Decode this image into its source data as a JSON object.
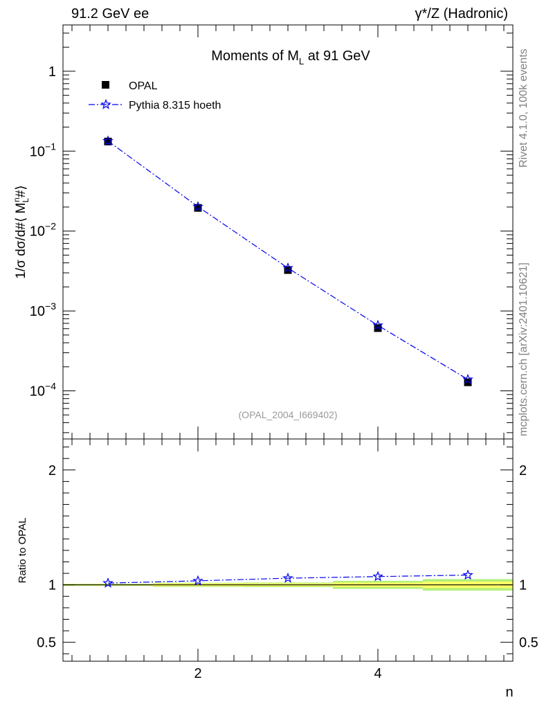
{
  "header": {
    "left": "91.2 GeV ee",
    "right": "γ*/Z (Hadronic)"
  },
  "side": {
    "rivet": "Rivet 4.1.0,  100k events",
    "mcplots": "mcplots.cern.ch [arXiv:2401.10621]"
  },
  "colors": {
    "data": "#000000",
    "mc": "#0000ee",
    "band_inner": "#ffff66",
    "band_outer": "#b3f07a"
  },
  "chart_data": [
    {
      "type": "line",
      "title_prefix": "Moments of M",
      "title_sub": "L",
      "title_suffix": " at 91 GeV",
      "ylabel": "1/σ  dσ/d#⟨ M",
      "ylabel_sub": "L",
      "ylabel_sup": "n",
      "ylabel_suffix": "#⟩",
      "yscale": "log",
      "xlim": [
        0.5,
        5.5
      ],
      "ylim": [
        2.5e-05,
        3.8
      ],
      "annotation": "(OPAL_2004_I669402)",
      "legend_position": "top-left",
      "y_tick_labels": [
        {
          "value": 1,
          "base": "1",
          "exp": ""
        },
        {
          "value": 0.1,
          "base": "10",
          "exp": "−1"
        },
        {
          "value": 0.01,
          "base": "10",
          "exp": "−2"
        },
        {
          "value": 0.001,
          "base": "10",
          "exp": "−3"
        },
        {
          "value": 0.0001,
          "base": "10",
          "exp": "−4"
        }
      ],
      "series": [
        {
          "name": "OPAL",
          "style": "square-marker",
          "x": [
            1,
            2,
            3,
            4,
            5
          ],
          "values": [
            0.132,
            0.0195,
            0.00325,
            0.00061,
            0.000128
          ]
        },
        {
          "name": "Pythia 8.315 hoeth",
          "style": "star-dashdot",
          "x": [
            1,
            2,
            3,
            4,
            5
          ],
          "values": [
            0.134,
            0.0202,
            0.00345,
            0.00066,
            0.000139
          ]
        }
      ]
    },
    {
      "type": "line",
      "ylabel": "Ratio to OPAL",
      "xlabel": "n",
      "xlim": [
        0.5,
        5.5
      ],
      "ylim": [
        0.335,
        2.27
      ],
      "x_ticks": [
        2,
        4
      ],
      "x_tick_labels": [
        "2",
        "4"
      ],
      "y_ticks": [
        2,
        1,
        0.5
      ],
      "y_tick_labels": [
        "2",
        "1",
        "0.5"
      ],
      "series": [
        {
          "name": "Pythia 8.315 hoeth",
          "x": [
            1,
            2,
            3,
            4,
            5
          ],
          "values": [
            1.015,
            1.035,
            1.058,
            1.072,
            1.085
          ]
        }
      ],
      "band": {
        "x_edges": [
          0.5,
          1.5,
          2.5,
          3.5,
          4.5,
          5.5
        ],
        "inner": [
          0.006,
          0.012,
          0.012,
          0.02,
          0.028
        ],
        "outer": [
          0.01,
          0.018,
          0.02,
          0.035,
          0.05
        ]
      }
    }
  ]
}
